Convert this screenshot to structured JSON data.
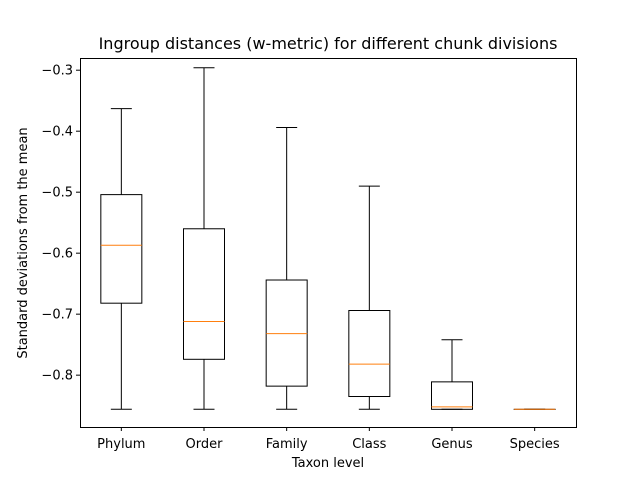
{
  "chart_data": {
    "type": "box",
    "title": "Ingroup distances (w-metric) for different chunk divisions",
    "xlabel": "Taxon level",
    "ylabel": "Standard deviations from the mean",
    "ylim": [
      -0.885,
      -0.28
    ],
    "yticks": [
      -0.3,
      -0.4,
      -0.5,
      -0.6,
      -0.7,
      -0.8
    ],
    "ytick_labels": [
      "−0.3",
      "−0.4",
      "−0.5",
      "−0.6",
      "−0.7",
      "−0.8"
    ],
    "categories": [
      "Phylum",
      "Order",
      "Family",
      "Class",
      "Genus",
      "Species"
    ],
    "boxes": [
      {
        "category": "Phylum",
        "whisker_low": -0.856,
        "q1": -0.682,
        "median": -0.587,
        "q3": -0.504,
        "whisker_high": -0.363
      },
      {
        "category": "Order",
        "whisker_low": -0.856,
        "q1": -0.774,
        "median": -0.712,
        "q3": -0.56,
        "whisker_high": -0.296
      },
      {
        "category": "Family",
        "whisker_low": -0.856,
        "q1": -0.818,
        "median": -0.732,
        "q3": -0.644,
        "whisker_high": -0.394
      },
      {
        "category": "Class",
        "whisker_low": -0.856,
        "q1": -0.835,
        "median": -0.782,
        "q3": -0.694,
        "whisker_high": -0.49
      },
      {
        "category": "Genus",
        "whisker_low": -0.856,
        "q1": -0.856,
        "median": -0.852,
        "q3": -0.811,
        "whisker_high": -0.742
      },
      {
        "category": "Species",
        "whisker_low": -0.856,
        "q1": -0.856,
        "median": -0.856,
        "q3": -0.856,
        "whisker_high": -0.856
      }
    ],
    "grid": false,
    "colors": {
      "box": "#000000",
      "median": "#ff7f0e",
      "axes": "#000000",
      "background": "#ffffff"
    }
  }
}
